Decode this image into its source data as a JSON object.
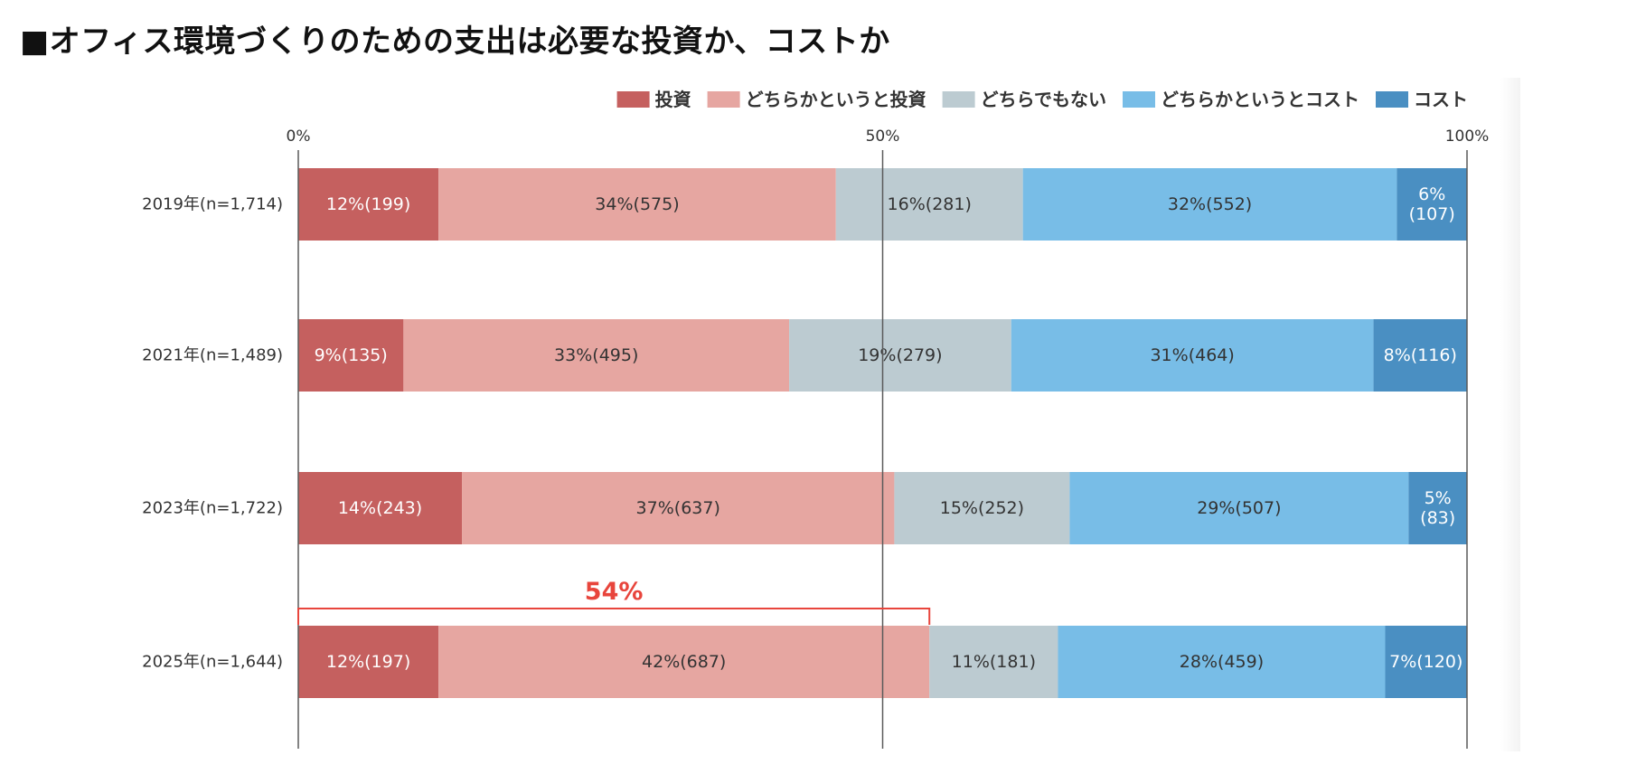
{
  "title": "■オフィス環境づくりのための支出は必要な投資か、コストか",
  "chart_data": {
    "type": "bar",
    "orientation": "horizontal",
    "stacked": true,
    "xlim": [
      0,
      100
    ],
    "xticks": [
      "0%",
      "50%",
      "100%"
    ],
    "categories": [
      "2019年(n=1,714)",
      "2021年(n=1,489)",
      "2023年(n=1,722)",
      "2025年(n=1,644)"
    ],
    "series": [
      {
        "name": "投資",
        "color": "#c5605f",
        "label_color": "#ffffff",
        "values": [
          12,
          9,
          14,
          12
        ],
        "labels": [
          [
            "12%(199)"
          ],
          [
            "9%(135)"
          ],
          [
            "14%(243)"
          ],
          [
            "12%(197)"
          ]
        ]
      },
      {
        "name": "どちらかというと投資",
        "color": "#e6a6a1",
        "label_color": "#333333",
        "values": [
          34,
          33,
          37,
          42
        ],
        "labels": [
          [
            "34%(575)"
          ],
          [
            "33%(495)"
          ],
          [
            "37%(637)"
          ],
          [
            "42%(687)"
          ]
        ]
      },
      {
        "name": "どちらでもない",
        "color": "#bccbd1",
        "label_color": "#333333",
        "values": [
          16,
          19,
          15,
          11
        ],
        "labels": [
          [
            "16%(281)"
          ],
          [
            "19%(279)"
          ],
          [
            "15%(252)"
          ],
          [
            "11%(181)"
          ]
        ]
      },
      {
        "name": "どちらかというとコスト",
        "color": "#78bde7",
        "label_color": "#333333",
        "values": [
          32,
          31,
          29,
          28
        ],
        "labels": [
          [
            "32%(552)"
          ],
          [
            "31%(464)"
          ],
          [
            "29%(507)"
          ],
          [
            "28%(459)"
          ]
        ]
      },
      {
        "name": "コスト",
        "color": "#4a8fc2",
        "label_color": "#ffffff",
        "values": [
          6,
          8,
          5,
          7
        ],
        "labels": [
          [
            "6%",
            "(107)"
          ],
          [
            "8%(116)"
          ],
          [
            "5%",
            "(83)"
          ],
          [
            "7%(120)"
          ]
        ]
      }
    ],
    "annotation": {
      "label": "54%",
      "category": "2025年(n=1,644)",
      "from": 0,
      "to": 54,
      "color": "#e8453c"
    },
    "legend_position": "top-right",
    "grid": true
  }
}
